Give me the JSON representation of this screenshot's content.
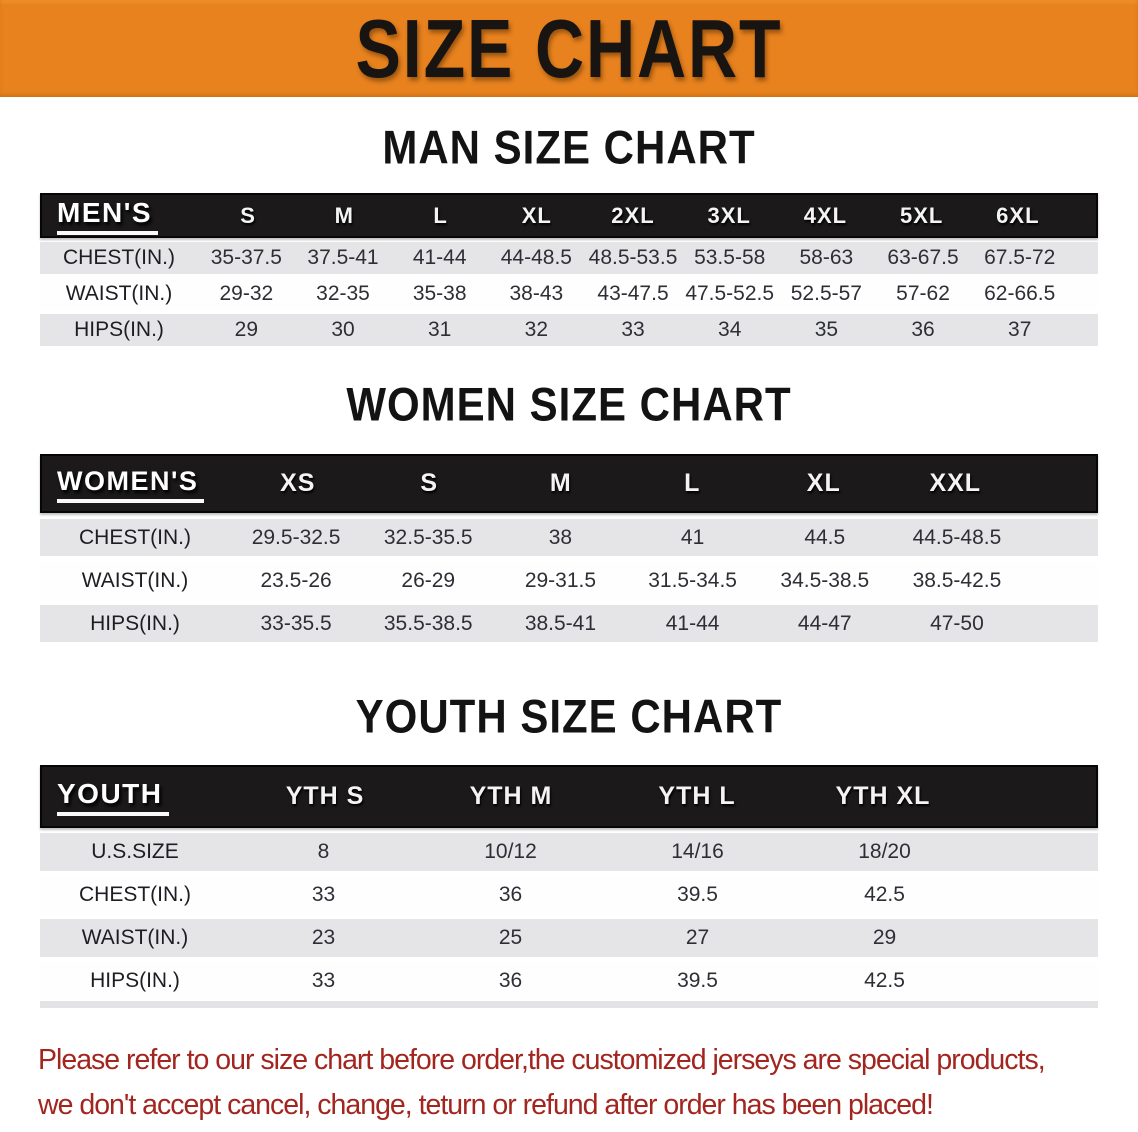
{
  "banner": {
    "title": "SIZE CHART",
    "bg_color": "#E8821E",
    "text_color": "#181411"
  },
  "sections": [
    {
      "heading": "MAN SIZE CHART",
      "table": {
        "corner_label": "MEN'S",
        "columns": [
          "S",
          "M",
          "L",
          "XL",
          "2XL",
          "3XL",
          "4XL",
          "5XL",
          "6XL"
        ],
        "rows": [
          {
            "label": "CHEST(IN.)",
            "values": [
              "35-37.5",
              "37.5-41",
              "41-44",
              "44-48.5",
              "48.5-53.5",
              "53.5-58",
              "58-63",
              "63-67.5",
              "67.5-72"
            ]
          },
          {
            "label": "WAIST(IN.)",
            "values": [
              "29-32",
              "32-35",
              "35-38",
              "38-43",
              "43-47.5",
              "47.5-52.5",
              "52.5-57",
              "57-62",
              "62-66.5"
            ]
          },
          {
            "label": "HIPS(IN.)",
            "values": [
              "29",
              "30",
              "31",
              "32",
              "33",
              "34",
              "35",
              "36",
              "37"
            ]
          }
        ]
      }
    },
    {
      "heading": "WOMEN SIZE CHART",
      "table": {
        "corner_label": "WOMEN'S",
        "columns": [
          "XS",
          "S",
          "M",
          "L",
          "XL",
          "XXL"
        ],
        "rows": [
          {
            "label": "CHEST(IN.)",
            "values": [
              "29.5-32.5",
              "32.5-35.5",
              "38",
              "41",
              "44.5",
              "44.5-48.5"
            ]
          },
          {
            "label": "WAIST(IN.)",
            "values": [
              "23.5-26",
              "26-29",
              "29-31.5",
              "31.5-34.5",
              "34.5-38.5",
              "38.5-42.5"
            ]
          },
          {
            "label": "HIPS(IN.)",
            "values": [
              "33-35.5",
              "35.5-38.5",
              "38.5-41",
              "41-44",
              "44-47",
              "47-50"
            ]
          }
        ]
      }
    },
    {
      "heading": "YOUTH SIZE CHART",
      "table": {
        "corner_label": "YOUTH",
        "columns": [
          "YTH S",
          "YTH M",
          "YTH L",
          "YTH XL"
        ],
        "rows": [
          {
            "label": "U.S.SIZE",
            "values": [
              "8",
              "10/12",
              "14/16",
              "18/20"
            ]
          },
          {
            "label": "CHEST(IN.)",
            "values": [
              "33",
              "36",
              "39.5",
              "42.5"
            ]
          },
          {
            "label": "WAIST(IN.)",
            "values": [
              "23",
              "25",
              "27",
              "29"
            ]
          },
          {
            "label": "HIPS(IN.)",
            "values": [
              "33",
              "36",
              "39.5",
              "42.5"
            ]
          }
        ]
      }
    }
  ],
  "footnote": {
    "line1": "Please refer to our size chart before order,the customized jerseys are special products,",
    "line2": "we don't accept cancel, change, teturn or refund after order has been placed!",
    "color": "#A2261F"
  },
  "colors": {
    "header_black": "#1b191a",
    "row_shade": "#e5e5e7",
    "row_plain": "#fefefe"
  }
}
